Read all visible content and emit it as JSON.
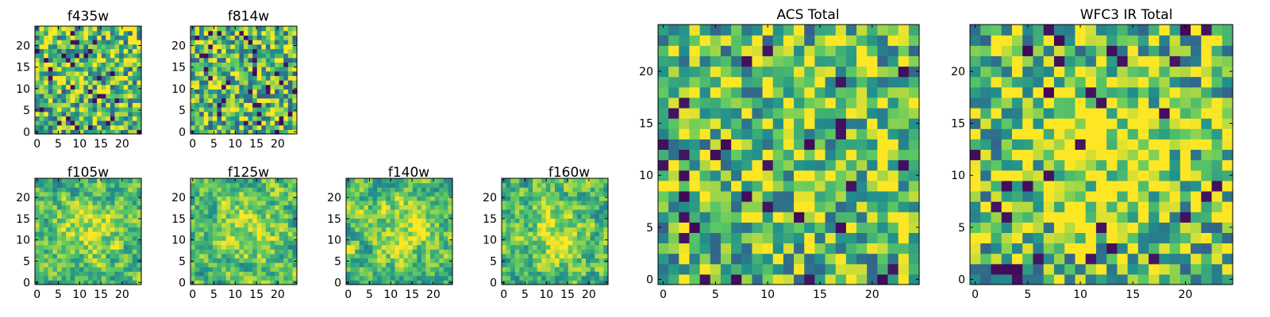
{
  "figure": {
    "colormap": "viridis",
    "colors": [
      "#440154",
      "#3b528b",
      "#21918c",
      "#5ec962",
      "#fde725"
    ]
  },
  "chart_data": [
    {
      "type": "heatmap",
      "title": "f435w",
      "size": 24,
      "xticks": [
        0,
        5,
        10,
        15,
        20
      ],
      "yticks": [
        0,
        5,
        10,
        15,
        20
      ],
      "xlim": [
        0,
        24
      ],
      "ylim": [
        0,
        24
      ],
      "seed": 11,
      "smooth": 0,
      "blob": 0
    },
    {
      "type": "heatmap",
      "title": "f814w",
      "size": 24,
      "xticks": [
        0,
        5,
        10,
        15,
        20
      ],
      "yticks": [
        0,
        5,
        10,
        15,
        20
      ],
      "xlim": [
        0,
        24
      ],
      "ylim": [
        0,
        24
      ],
      "seed": 23,
      "smooth": 0,
      "blob": 0
    },
    {
      "type": "heatmap",
      "title": "f105w",
      "size": 24,
      "xticks": [
        0,
        5,
        10,
        15,
        20
      ],
      "yticks": [
        0,
        5,
        10,
        15,
        20
      ],
      "xlim": [
        0,
        24
      ],
      "ylim": [
        0,
        24
      ],
      "seed": 37,
      "smooth": 1,
      "blob": 0.25
    },
    {
      "type": "heatmap",
      "title": "f125w",
      "size": 24,
      "xticks": [
        0,
        5,
        10,
        15,
        20
      ],
      "yticks": [
        0,
        5,
        10,
        15,
        20
      ],
      "xlim": [
        0,
        24
      ],
      "ylim": [
        0,
        24
      ],
      "seed": 41,
      "smooth": 1,
      "blob": 0.25
    },
    {
      "type": "heatmap",
      "title": "f140w",
      "size": 24,
      "xticks": [
        0,
        5,
        10,
        15,
        20
      ],
      "yticks": [
        0,
        5,
        10,
        15,
        20
      ],
      "xlim": [
        0,
        24
      ],
      "ylim": [
        0,
        24
      ],
      "seed": 53,
      "smooth": 1,
      "blob": 0.3
    },
    {
      "type": "heatmap",
      "title": "f160w",
      "size": 24,
      "xticks": [
        0,
        5,
        10,
        15,
        20
      ],
      "yticks": [
        0,
        5,
        10,
        15,
        20
      ],
      "xlim": [
        0,
        24
      ],
      "ylim": [
        0,
        24
      ],
      "seed": 67,
      "smooth": 1,
      "blob": 0.3
    },
    {
      "type": "heatmap",
      "title": "ACS Total",
      "size": 25,
      "xticks": [
        0,
        5,
        10,
        15,
        20
      ],
      "yticks": [
        0,
        5,
        10,
        15,
        20
      ],
      "xlim": [
        0,
        24
      ],
      "ylim": [
        0,
        24
      ],
      "seed": 79,
      "smooth": 0,
      "blob": 0.1
    },
    {
      "type": "heatmap",
      "title": "WFC3 IR Total",
      "size": 25,
      "xticks": [
        0,
        5,
        10,
        15,
        20
      ],
      "yticks": [
        0,
        5,
        10,
        15,
        20
      ],
      "xlim": [
        0,
        24
      ],
      "ylim": [
        0,
        24
      ],
      "seed": 97,
      "smooth": 0,
      "blob": 0.35
    }
  ]
}
